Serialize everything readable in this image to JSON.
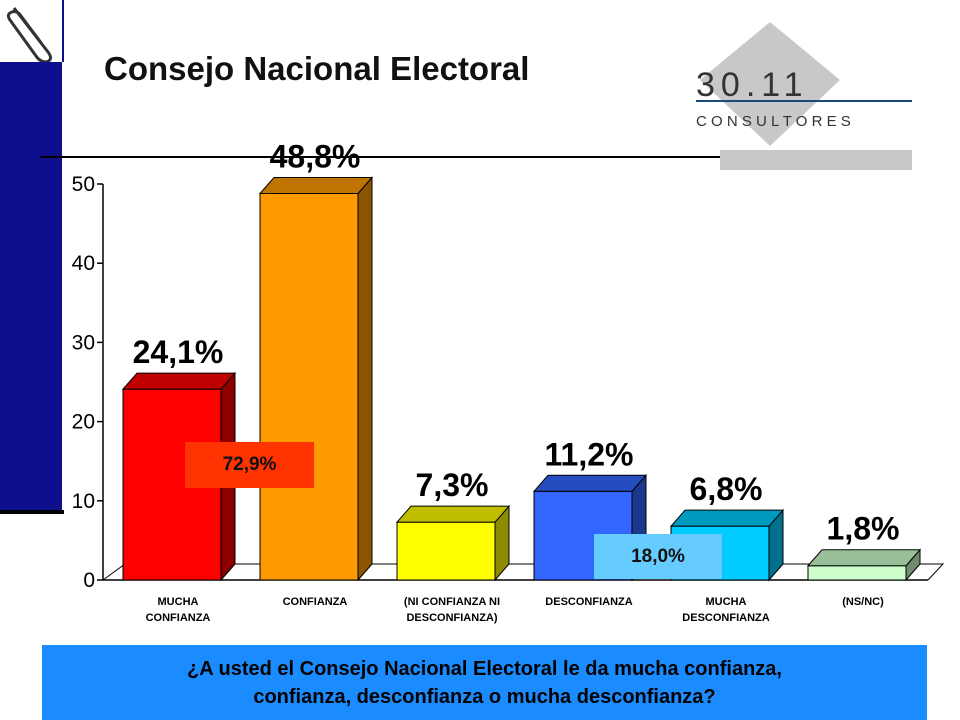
{
  "header": {
    "title": "Consejo Nacional Electoral",
    "logo_number": "30.11",
    "logo_text": "C O N S U L T O R E S"
  },
  "callouts": {
    "confidence_total": "72,9%",
    "distrust_total": "18,0%"
  },
  "question": {
    "line1": "¿A usted el Consejo Nacional Electoral le da mucha confianza,",
    "line2": "confianza,  desconfianza  o  mucha  desconfianza?"
  },
  "chart_data": {
    "type": "bar",
    "categories": [
      [
        "MUCHA",
        "CONFIANZA"
      ],
      [
        "CONFIANZA"
      ],
      [
        "(NI CONFIANZA NI",
        "DESCONFIANZA)"
      ],
      [
        "DESCONFIANZA"
      ],
      [
        "MUCHA",
        "DESCONFIANZA"
      ],
      [
        "(NS/NC)"
      ]
    ],
    "values": [
      24.1,
      48.8,
      7.3,
      11.2,
      6.8,
      1.8
    ],
    "data_labels": [
      "24,1%",
      "48,8%",
      "7,3%",
      "11,2%",
      "6,8%",
      "1,8%"
    ],
    "colors": [
      "#ff0000",
      "#ff9900",
      "#ffff00",
      "#3366ff",
      "#00ccff",
      "#ccffcc"
    ],
    "yticks": [
      0,
      10,
      20,
      30,
      40,
      50
    ],
    "ylim": [
      0,
      50
    ],
    "grid": false
  }
}
